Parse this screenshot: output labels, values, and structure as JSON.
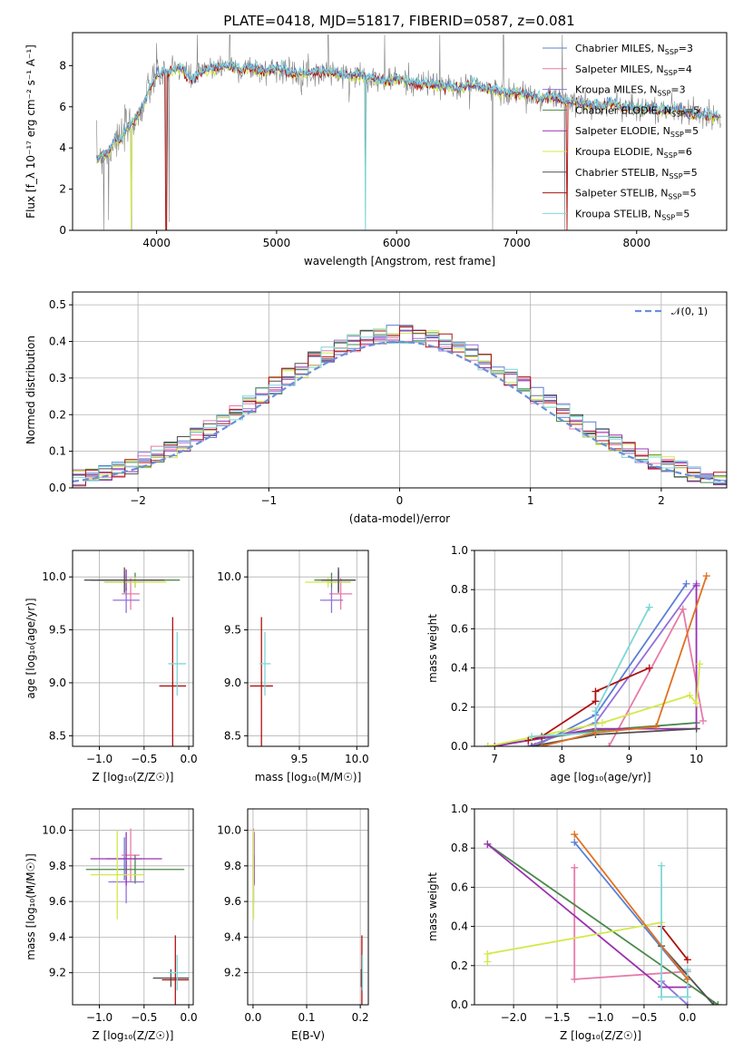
{
  "figure": {
    "title": "PLATE=0418, MJD=51817, FIBERID=0587, z=0.081"
  },
  "colors": {
    "Chabrier MILES": "#5b7fd4",
    "Salpeter MILES": "#e87aa8",
    "Kroupa MILES": "#9370db",
    "Chabrier ELODIE": "#4a8a4a",
    "Salpeter ELODIE": "#9b30b0",
    "Kroupa ELODIE": "#d4e84a",
    "Chabrier STELIB": "#505050",
    "Salpeter STELIB": "#b01010",
    "Kroupa STELIB": "#7fd6d6"
  },
  "chart_data": [
    {
      "id": "spectrum",
      "type": "line",
      "xlabel": "wavelength [Angstrom, rest frame]",
      "ylabel": "Flux [f_λ 10⁻¹⁷ erg cm⁻² s⁻¹ A⁻¹]",
      "xlim": [
        3300,
        8750
      ],
      "ylim": [
        0,
        9.6
      ],
      "xticks": [
        4000,
        5000,
        6000,
        7000,
        8000
      ],
      "yticks": [
        0,
        2,
        4,
        6,
        8
      ],
      "grid": false,
      "legend_position": "top-right",
      "legend": [
        {
          "model": "Chabrier MILES",
          "label": "Chabrier MILES, N",
          "sub": "SSP",
          "eq": "=3"
        },
        {
          "model": "Salpeter MILES",
          "label": "Salpeter MILES, N",
          "sub": "SSP",
          "eq": "=4"
        },
        {
          "model": "Kroupa MILES",
          "label": "Kroupa MILES, N",
          "sub": "SSP",
          "eq": "=3"
        },
        {
          "model": "Chabrier ELODIE",
          "label": "Chabrier ELODIE, N",
          "sub": "SSP",
          "eq": "=5"
        },
        {
          "model": "Salpeter ELODIE",
          "label": "Salpeter ELODIE, N",
          "sub": "SSP",
          "eq": "=5"
        },
        {
          "model": "Kroupa ELODIE",
          "label": "Kroupa ELODIE, N",
          "sub": "SSP",
          "eq": "=6"
        },
        {
          "model": "Chabrier STELIB",
          "label": "Chabrier STELIB, N",
          "sub": "SSP",
          "eq": "=5"
        },
        {
          "model": "Salpeter STELIB",
          "label": "Salpeter STELIB, N",
          "sub": "SSP",
          "eq": "=5"
        },
        {
          "model": "Kroupa STELIB",
          "label": "Kroupa STELIB, N",
          "sub": "SSP",
          "eq": "=5"
        }
      ],
      "data_color": "#808080",
      "continuum": [
        [
          3500,
          3.6
        ],
        [
          3600,
          3.7
        ],
        [
          3650,
          4.5
        ],
        [
          3700,
          4.3
        ],
        [
          3750,
          5.0
        ],
        [
          3800,
          5.2
        ],
        [
          3850,
          5.6
        ],
        [
          3900,
          6.2
        ],
        [
          3950,
          7.0
        ],
        [
          4000,
          7.6
        ],
        [
          4100,
          7.7
        ],
        [
          4200,
          7.9
        ],
        [
          4300,
          7.3
        ],
        [
          4400,
          7.8
        ],
        [
          4500,
          7.9
        ],
        [
          4600,
          8.0
        ],
        [
          4700,
          7.8
        ],
        [
          4800,
          7.9
        ],
        [
          4900,
          7.7
        ],
        [
          5000,
          7.9
        ],
        [
          5100,
          7.7
        ],
        [
          5200,
          7.6
        ],
        [
          5300,
          7.7
        ],
        [
          5400,
          7.7
        ],
        [
          5500,
          7.6
        ],
        [
          5600,
          7.5
        ],
        [
          5700,
          7.6
        ],
        [
          5800,
          7.4
        ],
        [
          5900,
          7.2
        ],
        [
          6000,
          7.4
        ],
        [
          6100,
          7.2
        ],
        [
          6200,
          7.1
        ],
        [
          6300,
          7.1
        ],
        [
          6400,
          7.0
        ],
        [
          6500,
          6.9
        ],
        [
          6600,
          7.1
        ],
        [
          6700,
          7.0
        ],
        [
          6800,
          6.8
        ],
        [
          6900,
          6.7
        ],
        [
          7000,
          6.7
        ],
        [
          7100,
          6.6
        ],
        [
          7200,
          6.4
        ],
        [
          7300,
          6.5
        ],
        [
          7400,
          6.3
        ],
        [
          7500,
          6.2
        ],
        [
          7600,
          6.1
        ],
        [
          7700,
          6.0
        ],
        [
          7800,
          6.2
        ],
        [
          7900,
          6.0
        ],
        [
          8000,
          5.9
        ],
        [
          8100,
          6.0
        ],
        [
          8200,
          5.8
        ],
        [
          8300,
          5.9
        ],
        [
          8400,
          5.8
        ],
        [
          8500,
          5.6
        ],
        [
          8600,
          5.6
        ],
        [
          8700,
          5.5
        ]
      ]
    },
    {
      "id": "residuals",
      "type": "histogram",
      "xlabel": "(data-model)/error",
      "ylabel": "Normed distribution",
      "xlim": [
        -2.5,
        2.5
      ],
      "ylim": [
        0,
        0.535
      ],
      "xticks": [
        -2,
        -1,
        0,
        1,
        2
      ],
      "yticks": [
        0.0,
        0.1,
        0.2,
        0.3,
        0.4,
        0.5
      ],
      "grid": true,
      "legend_position": "top-right",
      "legend": [
        {
          "label": "𝒩(0, 1)",
          "color": "#6a8fd8"
        }
      ]
    },
    {
      "id": "age_vs_Z",
      "type": "errorbar",
      "xlabel": "Z [log₁₀(Z/Z☉)]",
      "ylabel": "age  [log₁₀(age/yr)]",
      "xlim": [
        -1.3,
        0.05
      ],
      "ylim": [
        8.4,
        10.25
      ],
      "xticks": [
        -1.0,
        -0.5,
        0.0
      ],
      "yticks": [
        8.5,
        9.0,
        9.5,
        10.0
      ],
      "grid": true,
      "points": [
        {
          "model": "Chabrier MILES",
          "x": -0.72,
          "xerr": 0.22,
          "y": 9.95,
          "yerr": 0.1
        },
        {
          "model": "Salpeter MILES",
          "x": -0.65,
          "xerr": 0.1,
          "y": 9.84,
          "yerr": 0.15
        },
        {
          "model": "Kroupa MILES",
          "x": -0.7,
          "xerr": 0.15,
          "y": 9.78,
          "yerr": 0.12
        },
        {
          "model": "Chabrier ELODIE",
          "x": -0.6,
          "xerr": 0.5,
          "y": 9.97,
          "yerr": 0.07
        },
        {
          "model": "Salpeter ELODIE",
          "x": -0.7,
          "xerr": 0.38,
          "y": 9.97,
          "yerr": 0.1
        },
        {
          "model": "Kroupa ELODIE",
          "x": -0.6,
          "xerr": 0.35,
          "y": 9.95,
          "yerr": 0.05
        },
        {
          "model": "Chabrier STELIB",
          "x": -0.72,
          "xerr": 0.45,
          "y": 9.97,
          "yerr": 0.12
        },
        {
          "model": "Salpeter STELIB",
          "x": -0.18,
          "xerr": 0.15,
          "y": 8.97,
          "yerr": 0.65
        },
        {
          "model": "Kroupa STELIB",
          "x": -0.13,
          "xerr": 0.1,
          "y": 9.18,
          "yerr": 0.3
        }
      ]
    },
    {
      "id": "age_vs_mass",
      "type": "errorbar",
      "xlabel": "mass [log₁₀(M/M☉)]",
      "ylabel": "",
      "xlim": [
        9.05,
        10.1
      ],
      "ylim": [
        8.4,
        10.25
      ],
      "xticks": [
        9.5,
        10.0
      ],
      "yticks": [
        8.5,
        9.0,
        9.5,
        10.0
      ],
      "grid": true,
      "points": [
        {
          "model": "Chabrier MILES",
          "x": 9.84,
          "xerr": 0.1,
          "y": 9.95,
          "yerr": 0.1
        },
        {
          "model": "Salpeter MILES",
          "x": 9.86,
          "xerr": 0.1,
          "y": 9.84,
          "yerr": 0.15
        },
        {
          "model": "Kroupa MILES",
          "x": 9.78,
          "xerr": 0.1,
          "y": 9.78,
          "yerr": 0.12
        },
        {
          "model": "Chabrier ELODIE",
          "x": 9.78,
          "xerr": 0.15,
          "y": 9.97,
          "yerr": 0.07
        },
        {
          "model": "Salpeter ELODIE",
          "x": 9.84,
          "xerr": 0.15,
          "y": 9.97,
          "yerr": 0.1
        },
        {
          "model": "Kroupa ELODIE",
          "x": 9.75,
          "xerr": 0.2,
          "y": 9.95,
          "yerr": 0.05
        },
        {
          "model": "Chabrier STELIB",
          "x": 9.84,
          "xerr": 0.15,
          "y": 9.97,
          "yerr": 0.12
        },
        {
          "model": "Salpeter STELIB",
          "x": 9.17,
          "xerr": 0.1,
          "y": 8.97,
          "yerr": 0.65
        },
        {
          "model": "Kroupa STELIB",
          "x": 9.2,
          "xerr": 0.05,
          "y": 9.18,
          "yerr": 0.3
        }
      ]
    },
    {
      "id": "weight_vs_age",
      "type": "line",
      "xlabel": "age  [log₁₀(age/yr)]",
      "ylabel": "mass weight",
      "xlim": [
        6.7,
        10.45
      ],
      "ylim": [
        0,
        1.0
      ],
      "xticks": [
        7,
        8,
        9,
        10
      ],
      "yticks": [
        0.0,
        0.2,
        0.4,
        0.6,
        0.8,
        1.0
      ],
      "grid": true,
      "series": [
        {
          "model": "Chabrier MILES",
          "x": [
            7.6,
            8.5,
            9.85
          ],
          "y": [
            0.0,
            0.16,
            0.83
          ]
        },
        {
          "model": "Salpeter MILES",
          "x": [
            8.7,
            9.8,
            10.1
          ],
          "y": [
            0.0,
            0.7,
            0.13
          ]
        },
        {
          "model": "Kroupa MILES",
          "x": [
            7.5,
            8.5,
            10.0
          ],
          "y": [
            0.0,
            0.12,
            0.83
          ]
        },
        {
          "model": "Chabrier ELODIE",
          "x": [
            6.9,
            7.7,
            8.5,
            10.0
          ],
          "y": [
            0.0,
            0.04,
            0.08,
            0.12
          ]
        },
        {
          "model": "Salpeter ELODIE",
          "x": [
            7.0,
            8.5,
            10.0,
            10.0
          ],
          "y": [
            0.0,
            0.09,
            0.09,
            0.82
          ]
        },
        {
          "model": "Kroupa ELODIE",
          "x": [
            6.9,
            8.6,
            9.9,
            10.0,
            10.05
          ],
          "y": [
            0.0,
            0.12,
            0.26,
            0.22,
            0.42
          ]
        },
        {
          "model": "Chabrier STELIB",
          "x": [
            7.55,
            8.5,
            10.0
          ],
          "y": [
            0.0,
            0.06,
            0.09
          ]
        },
        {
          "model": "Salpeter STELIB",
          "x": [
            7.5,
            7.7,
            8.5,
            8.5,
            9.3
          ],
          "y": [
            0.03,
            0.05,
            0.23,
            0.28,
            0.4
          ]
        },
        {
          "model": "Kroupa STELIB",
          "x": [
            7.55,
            8.5,
            8.5,
            9.3,
            9.3
          ],
          "y": [
            0.05,
            0.07,
            0.18,
            0.71,
            0.71
          ]
        }
      ],
      "extra": [
        {
          "model": "Salpeter ELODIE orange",
          "x": [
            7.7,
            8.5,
            9.4,
            10.15
          ],
          "y": [
            0.0,
            0.07,
            0.1,
            0.87
          ]
        }
      ]
    },
    {
      "id": "mass_vs_Z",
      "type": "errorbar",
      "xlabel": "Z [log₁₀(Z/Z☉)]",
      "ylabel": "mass [log₁₀(M/M☉)]",
      "xlim": [
        -1.3,
        0.05
      ],
      "ylim": [
        9.02,
        10.12
      ],
      "xticks": [
        -1.0,
        -0.5,
        0.0
      ],
      "yticks": [
        9.2,
        9.4,
        9.6,
        9.8,
        10.0
      ],
      "grid": true,
      "points": [
        {
          "model": "Chabrier MILES",
          "x": -0.72,
          "xerr": 0.2,
          "y": 9.84,
          "yerr": 0.12
        },
        {
          "model": "Salpeter MILES",
          "x": -0.65,
          "xerr": 0.1,
          "y": 9.86,
          "yerr": 0.15
        },
        {
          "model": "Kroupa MILES",
          "x": -0.7,
          "xerr": 0.2,
          "y": 9.71,
          "yerr": 0.12
        },
        {
          "model": "Chabrier ELODIE",
          "x": -0.6,
          "xerr": 0.55,
          "y": 9.78,
          "yerr": 0.08
        },
        {
          "model": "Salpeter ELODIE",
          "x": -0.7,
          "xerr": 0.4,
          "y": 9.84,
          "yerr": 0.15
        },
        {
          "model": "Kroupa ELODIE",
          "x": -0.8,
          "xerr": 0.3,
          "y": 9.75,
          "yerr": 0.25
        },
        {
          "model": "Chabrier STELIB",
          "x": -0.2,
          "xerr": 0.2,
          "y": 9.17,
          "yerr": 0.05
        },
        {
          "model": "Salpeter STELIB",
          "x": -0.15,
          "xerr": 0.15,
          "y": 9.16,
          "yerr": 0.25
        },
        {
          "model": "Kroupa STELIB",
          "x": -0.13,
          "xerr": 0.1,
          "y": 9.2,
          "yerr": 0.1
        }
      ]
    },
    {
      "id": "mass_vs_EBV",
      "type": "errorbar",
      "xlabel": "E(B-V)",
      "ylabel": "",
      "xlim": [
        -0.01,
        0.215
      ],
      "ylim": [
        9.02,
        10.12
      ],
      "xticks": [
        0.0,
        0.1,
        0.2
      ],
      "yticks": [
        9.2,
        9.4,
        9.6,
        9.8,
        10.0
      ],
      "grid": true,
      "points": [
        {
          "model": "Chabrier MILES",
          "x": 0.001,
          "xerr": 0,
          "y": 9.84,
          "yerr": 0.12
        },
        {
          "model": "Salpeter MILES",
          "x": 0.001,
          "xerr": 0,
          "y": 9.86,
          "yerr": 0.15
        },
        {
          "model": "Kroupa MILES",
          "x": 0.001,
          "xerr": 0,
          "y": 9.71,
          "yerr": 0.12
        },
        {
          "model": "Chabrier ELODIE",
          "x": 0.002,
          "xerr": 0,
          "y": 9.78,
          "yerr": 0.08
        },
        {
          "model": "Salpeter ELODIE",
          "x": 0.002,
          "xerr": 0,
          "y": 9.84,
          "yerr": 0.15
        },
        {
          "model": "Kroupa ELODIE",
          "x": 0.001,
          "xerr": 0,
          "y": 9.75,
          "yerr": 0.25
        },
        {
          "model": "Chabrier STELIB",
          "x": 0.202,
          "xerr": 0,
          "y": 9.17,
          "yerr": 0.05
        },
        {
          "model": "Salpeter STELIB",
          "x": 0.203,
          "xerr": 0,
          "y": 9.16,
          "yerr": 0.25
        },
        {
          "model": "Kroupa STELIB",
          "x": 0.204,
          "xerr": 0,
          "y": 9.2,
          "yerr": 0.1
        }
      ]
    },
    {
      "id": "weight_vs_Z",
      "type": "line",
      "xlabel": "Z [log₁₀(Z/Z☉)]",
      "ylabel": "mass weight",
      "xlim": [
        -2.45,
        0.45
      ],
      "ylim": [
        0,
        1.0
      ],
      "xticks": [
        -2.0,
        -1.5,
        -1.0,
        -0.5,
        0.0
      ],
      "yticks": [
        0.0,
        0.2,
        0.4,
        0.6,
        0.8,
        1.0
      ],
      "grid": true,
      "series": [
        {
          "model": "Chabrier MILES",
          "x": [
            -1.3,
            0.0
          ],
          "y": [
            0.83,
            0.13
          ]
        },
        {
          "model": "Salpeter MILES",
          "x": [
            -1.3,
            -1.3,
            0.0
          ],
          "y": [
            0.7,
            0.13,
            0.17
          ]
        },
        {
          "model": "Kroupa MILES",
          "x": [
            -0.3,
            0.0
          ],
          "y": [
            0.12,
            0.0
          ]
        },
        {
          "model": "Chabrier ELODIE",
          "x": [
            -2.3,
            0.35
          ],
          "y": [
            0.82,
            0.0
          ]
        },
        {
          "model": "Salpeter ELODIE",
          "x": [
            -2.3,
            -0.3,
            0.0
          ],
          "y": [
            0.82,
            0.09,
            0.09
          ]
        },
        {
          "model": "Kroupa ELODIE",
          "x": [
            -2.3,
            -2.3,
            -0.3
          ],
          "y": [
            0.22,
            0.26,
            0.42
          ]
        },
        {
          "model": "Chabrier STELIB",
          "x": [
            -0.3,
            0.3
          ],
          "y": [
            0.3,
            0.0
          ]
        },
        {
          "model": "Salpeter STELIB",
          "x": [
            -0.3,
            0.0
          ],
          "y": [
            0.4,
            0.23
          ]
        },
        {
          "model": "Kroupa STELIB",
          "x": [
            -0.3,
            -0.3,
            0.0,
            0.0
          ],
          "y": [
            0.71,
            0.04,
            0.04,
            0.18
          ]
        }
      ],
      "extra": [
        {
          "model": "Salpeter ELODIE orange",
          "x": [
            -1.3,
            0.0
          ],
          "y": [
            0.87,
            0.13
          ]
        }
      ]
    }
  ]
}
